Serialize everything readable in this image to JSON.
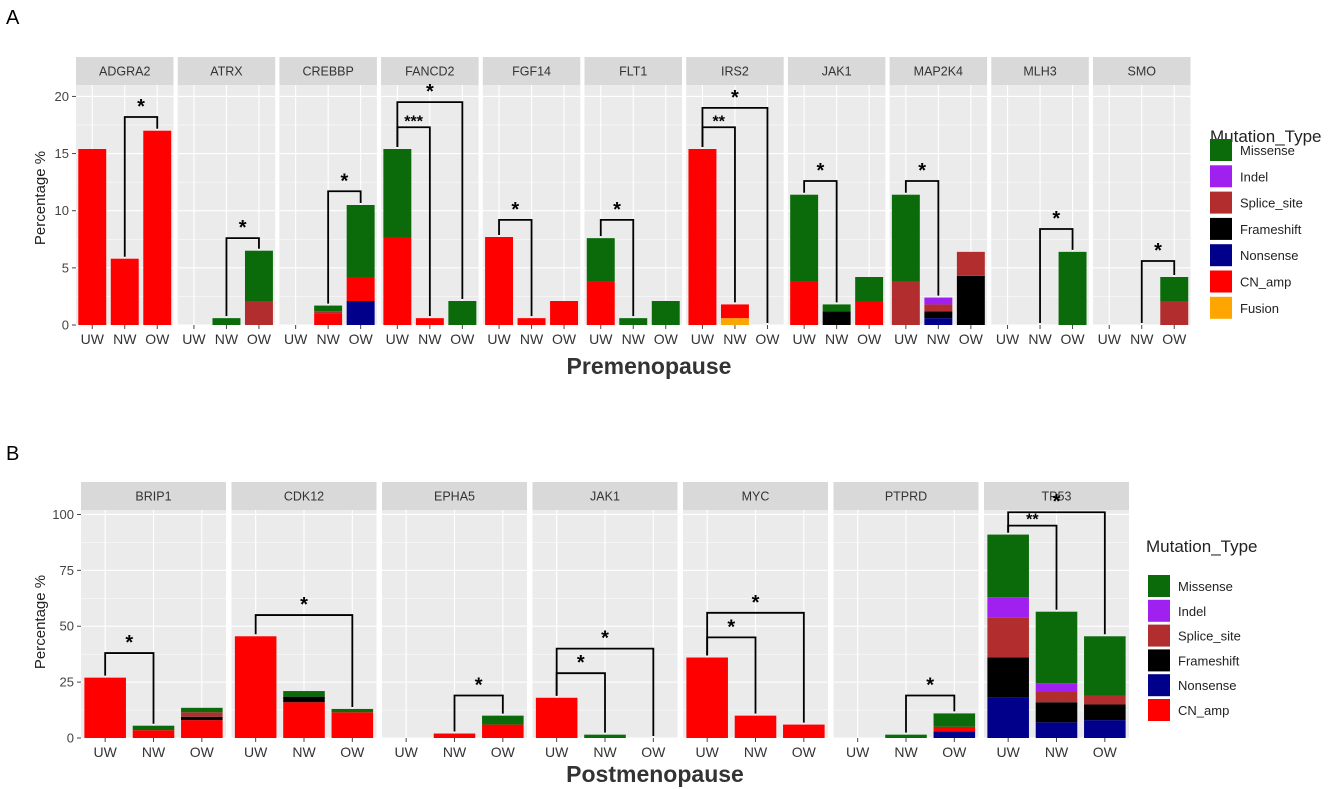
{
  "colors": {
    "Missense": "#0b6b0b",
    "Indel": "#a020f0",
    "Splice_site": "#b22e2e",
    "Frameshift": "#000000",
    "Nonsense": "#00008b",
    "CN_amp": "#ff0000",
    "Fusion": "#ffa500",
    "panel_bg": "#ebebeb",
    "strip_bg": "#d9d9d9",
    "grid": "#ffffff"
  },
  "chart_data": [
    {
      "type": "bar",
      "stacked": true,
      "panel_tag": "A",
      "title": "",
      "xlabel": "Premenopause",
      "ylabel": "Percentage %",
      "ylim": [
        0,
        21
      ],
      "yticks": [
        "0",
        "5",
        "10",
        "15",
        "20"
      ],
      "categories": [
        "UW",
        "NW",
        "OW"
      ],
      "legend_title": "Mutation_Type",
      "legend_entries": [
        "Missense",
        "Indel",
        "Splice_site",
        "Frameshift",
        "Nonsense",
        "CN_amp",
        "Fusion"
      ],
      "stack_order": [
        "Nonsense",
        "Fusion",
        "CN_amp",
        "Frameshift",
        "Splice_site",
        "Indel",
        "Missense"
      ],
      "facets": [
        {
          "gene": "ADGRA2",
          "bars": [
            {
              "CN_amp": 15.4
            },
            {
              "CN_amp": 5.8
            },
            {
              "CN_amp": 17.0
            }
          ],
          "sig": [
            {
              "from": 1,
              "to": 2,
              "label": "*",
              "y": 18.2
            }
          ]
        },
        {
          "gene": "ATRX",
          "bars": [
            {},
            {
              "Missense": 0.6
            },
            {
              "Splice_site": 2.1,
              "Missense": 4.4
            }
          ],
          "sig": [
            {
              "from": 1,
              "to": 2,
              "label": "*",
              "y": 7.6
            }
          ]
        },
        {
          "gene": "CREBBP",
          "bars": [
            {},
            {
              "CN_amp": 1.0,
              "Splice_site": 0.2,
              "Missense": 0.5
            },
            {
              "CN_amp": 2.1,
              "Nonsense": 2.1,
              "Missense": 6.3
            }
          ],
          "sig": [
            {
              "from": 1,
              "to": 2,
              "label": "*",
              "y": 11.7
            }
          ]
        },
        {
          "gene": "FANCD2",
          "bars": [
            {
              "CN_amp": 7.7,
              "Missense": 7.7
            },
            {
              "CN_amp": 0.6
            },
            {
              "Missense": 2.1
            }
          ],
          "sig": [
            {
              "from": 0,
              "to": 1,
              "label": "***",
              "y": 17.3
            },
            {
              "from": 0,
              "to": 2,
              "label": "*",
              "y": 19.5
            }
          ]
        },
        {
          "gene": "FGF14",
          "bars": [
            {
              "CN_amp": 7.7
            },
            {
              "CN_amp": 0.6
            },
            {
              "CN_amp": 2.1
            }
          ],
          "sig": [
            {
              "from": 0,
              "to": 1,
              "label": "*",
              "y": 9.2
            }
          ]
        },
        {
          "gene": "FLT1",
          "bars": [
            {
              "CN_amp": 3.8,
              "Missense": 3.8
            },
            {
              "Missense": 0.6
            },
            {
              "Missense": 2.1
            }
          ],
          "sig": [
            {
              "from": 0,
              "to": 1,
              "label": "*",
              "y": 9.2
            }
          ]
        },
        {
          "gene": "IRS2",
          "bars": [
            {
              "CN_amp": 15.4
            },
            {
              "Fusion": 0.6,
              "CN_amp": 1.2
            },
            {}
          ],
          "sig": [
            {
              "from": 0,
              "to": 1,
              "label": "**",
              "y": 17.3
            },
            {
              "from": 0,
              "to": 2,
              "label": "*",
              "y": 19.0
            }
          ]
        },
        {
          "gene": "JAK1",
          "bars": [
            {
              "CN_amp": 3.8,
              "Missense": 7.6
            },
            {
              "Frameshift": 1.2,
              "Missense": 0.6
            },
            {
              "CN_amp": 2.1,
              "Missense": 2.1
            }
          ],
          "sig": [
            {
              "from": 0,
              "to": 1,
              "label": "*",
              "y": 12.6
            }
          ]
        },
        {
          "gene": "MAP2K4",
          "bars": [
            {
              "Splice_site": 3.8,
              "Missense": 7.6
            },
            {
              "Nonsense": 0.6,
              "Frameshift": 0.6,
              "Splice_site": 0.6,
              "Indel": 0.6
            },
            {
              "Frameshift": 4.3,
              "Splice_site": 2.1
            }
          ],
          "sig": [
            {
              "from": 0,
              "to": 1,
              "label": "*",
              "y": 12.6
            }
          ]
        },
        {
          "gene": "MLH3",
          "bars": [
            {},
            {},
            {
              "Missense": 6.4
            }
          ],
          "sig": [
            {
              "from": 1,
              "to": 2,
              "label": "*",
              "y": 8.4
            }
          ]
        },
        {
          "gene": "SMO",
          "bars": [
            {},
            {},
            {
              "Splice_site": 2.1,
              "Missense": 2.1
            }
          ],
          "sig": [
            {
              "from": 1,
              "to": 2,
              "label": "*",
              "y": 5.6
            }
          ]
        }
      ]
    },
    {
      "type": "bar",
      "stacked": true,
      "panel_tag": "B",
      "title": "",
      "xlabel": "Postmenopause",
      "ylabel": "Percentage %",
      "ylim": [
        0,
        102
      ],
      "yticks": [
        "0",
        "25",
        "50",
        "75",
        "100"
      ],
      "categories": [
        "UW",
        "NW",
        "OW"
      ],
      "legend_title": "Mutation_Type",
      "legend_entries": [
        "Missense",
        "Indel",
        "Splice_site",
        "Frameshift",
        "Nonsense",
        "CN_amp"
      ],
      "stack_order": [
        "Nonsense",
        "CN_amp",
        "Frameshift",
        "Splice_site",
        "Indel",
        "Missense"
      ],
      "facets": [
        {
          "gene": "BRIP1",
          "bars": [
            {
              "CN_amp": 27.0
            },
            {
              "CN_amp": 3.5,
              "Missense": 2.0
            },
            {
              "CN_amp": 8.0,
              "Frameshift": 1.5,
              "Splice_site": 2.0,
              "Missense": 2.0
            }
          ],
          "sig": [
            {
              "from": 0,
              "to": 1,
              "label": "*",
              "y": 38
            }
          ]
        },
        {
          "gene": "CDK12",
          "bars": [
            {
              "CN_amp": 45.5
            },
            {
              "CN_amp": 16.0,
              "Frameshift": 2.5,
              "Missense": 2.5
            },
            {
              "CN_amp": 11.5,
              "Missense": 1.5
            }
          ],
          "sig": [
            {
              "from": 0,
              "to": 2,
              "label": "*",
              "y": 55
            }
          ]
        },
        {
          "gene": "EPHA5",
          "bars": [
            {},
            {
              "CN_amp": 2.0
            },
            {
              "CN_amp": 6.0,
              "Missense": 4.0
            }
          ],
          "sig": [
            {
              "from": 1,
              "to": 2,
              "label": "*",
              "y": 19
            }
          ]
        },
        {
          "gene": "JAK1",
          "bars": [
            {
              "CN_amp": 18.0
            },
            {
              "Missense": 1.5
            },
            {}
          ],
          "sig": [
            {
              "from": 0,
              "to": 1,
              "label": "*",
              "y": 29
            },
            {
              "from": 0,
              "to": 2,
              "label": "*",
              "y": 40
            }
          ]
        },
        {
          "gene": "MYC",
          "bars": [
            {
              "CN_amp": 36.0
            },
            {
              "CN_amp": 10.0
            },
            {
              "CN_amp": 6.0
            }
          ],
          "sig": [
            {
              "from": 0,
              "to": 1,
              "label": "*",
              "y": 45
            },
            {
              "from": 0,
              "to": 2,
              "label": "*",
              "y": 56
            }
          ]
        },
        {
          "gene": "PTPRD",
          "bars": [
            {},
            {
              "Missense": 1.5
            },
            {
              "CN_amp": 2.0,
              "Nonsense": 3.0,
              "Missense": 6.0
            }
          ],
          "sig": [
            {
              "from": 1,
              "to": 2,
              "label": "*",
              "y": 19
            }
          ]
        },
        {
          "gene": "TP53",
          "bars": [
            {
              "Nonsense": 18.0,
              "Frameshift": 18.0,
              "Splice_site": 18.0,
              "Indel": 9.0,
              "Missense": 28.0
            },
            {
              "Nonsense": 7.0,
              "Frameshift": 9.0,
              "Splice_site": 5.0,
              "Indel": 3.5,
              "Missense": 32.0
            },
            {
              "Nonsense": 8.0,
              "Frameshift": 7.0,
              "Splice_site": 4.0,
              "Missense": 26.5
            }
          ],
          "sig": [
            {
              "from": 0,
              "to": 1,
              "label": "**",
              "y": 95
            },
            {
              "from": 0,
              "to": 2,
              "label": "*",
              "y": 101
            }
          ]
        }
      ]
    }
  ]
}
